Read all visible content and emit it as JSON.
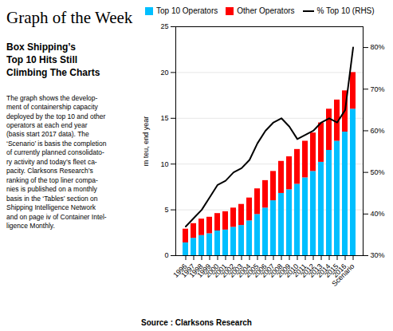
{
  "chart_data": {
    "type": "bar",
    "title": "Graph of the Week",
    "subtitle": "Box Shipping’s\nTop 10 Hits Still\nClimbing The Charts",
    "description": "The graph shows the develop-\nment of containership capacity\ndeployed by the top 10 and other\noperators at each end year\n(basis start 2017 data). The\n‘Scenario’ is basis the completion\nof currently planned consolidato-\nry activity and today’s fleet ca-\npacity. Clarksons Research’s\nranking of the top liner compa-\nnies is published on a monthly\nbasis in the ‘Tables’ section on\nShipping Intelligence Network\nand on page iv of Container Intel-\nligence Monthly.",
    "source": "Source : Clarksons Research",
    "categories": [
      "1996",
      "1997",
      "1998",
      "1999",
      "2000",
      "2001",
      "2002",
      "2003",
      "2004",
      "2005",
      "2006",
      "2007",
      "2008",
      "2009",
      "2010",
      "2011",
      "2012",
      "2013",
      "2014",
      "2015",
      "2016",
      "Scenario"
    ],
    "series": [
      {
        "name": "Top 10 Operators",
        "type": "bar",
        "color": "#00BFFF",
        "values": [
          1.4,
          1.9,
          2.2,
          2.4,
          2.7,
          2.8,
          3.1,
          3.3,
          3.8,
          4.5,
          5.2,
          6.0,
          6.8,
          7.2,
          7.8,
          8.5,
          9.2,
          10.2,
          11.5,
          12.5,
          13.5,
          16.0
        ]
      },
      {
        "name": "Other Operators",
        "type": "bar",
        "color": "#FF0000",
        "values": [
          1.5,
          1.6,
          1.8,
          1.8,
          1.9,
          2.0,
          2.1,
          2.3,
          2.5,
          2.8,
          3.0,
          3.2,
          3.5,
          3.6,
          3.8,
          4.0,
          4.2,
          4.3,
          4.5,
          4.5,
          4.5,
          4.0
        ]
      },
      {
        "name": "% Top 10 (RHS)",
        "type": "line",
        "axis": "y2",
        "color": "#000000",
        "values": [
          37,
          39,
          41,
          44,
          47,
          48,
          50,
          51,
          53,
          57,
          60,
          62,
          63,
          61,
          58,
          59,
          60,
          62,
          63,
          62,
          65,
          80
        ]
      }
    ],
    "stacked": true,
    "ylabel": "m teu, end year",
    "ylim": [
      0,
      25
    ],
    "yticks": [
      0,
      5,
      10,
      15,
      20,
      25
    ],
    "y2lim": [
      30,
      85
    ],
    "y2ticks": [
      {
        "value": 30,
        "label": "30%"
      },
      {
        "value": 40,
        "label": "40%"
      },
      {
        "value": 50,
        "label": "50%"
      },
      {
        "value": 60,
        "label": "60%"
      },
      {
        "value": 70,
        "label": "70%"
      },
      {
        "value": 80,
        "label": "80%"
      }
    ],
    "grid": true,
    "legend": "upper left"
  }
}
